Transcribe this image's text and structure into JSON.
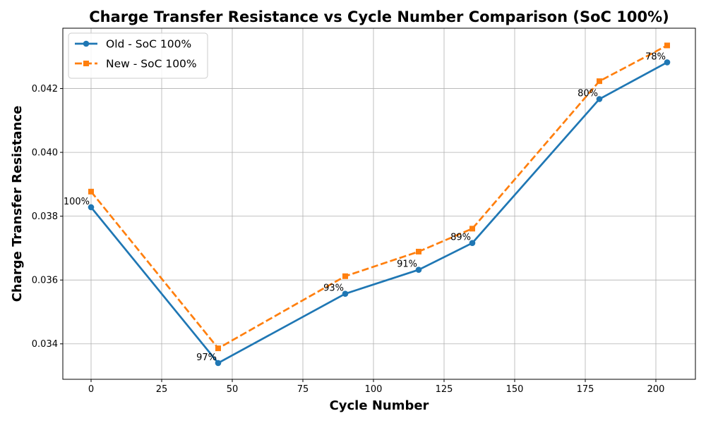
{
  "chart_data": {
    "type": "line",
    "title": "Charge Transfer Resistance vs Cycle Number Comparison (SoC 100%)",
    "xlabel": "Cycle Number",
    "ylabel": "Charge Transfer Resistance",
    "xlim": [
      -10,
      214
    ],
    "ylim": [
      0.03289,
      0.04389
    ],
    "xticks": [
      0,
      25,
      50,
      75,
      100,
      125,
      150,
      175,
      200
    ],
    "yticks": [
      0.034,
      0.036,
      0.038,
      0.04,
      0.042
    ],
    "grid": true,
    "legend_position": "upper-left",
    "x": [
      0,
      45,
      90,
      116,
      135,
      180,
      204
    ],
    "series": [
      {
        "name": "Old - SoC 100%",
        "color": "#1f77b4",
        "marker": "circle",
        "line_style": "solid",
        "values": [
          0.03828,
          0.0334,
          0.03557,
          0.03632,
          0.03716,
          0.04167,
          0.04282
        ]
      },
      {
        "name": "New - SoC 100%",
        "color": "#ff7f0e",
        "marker": "square",
        "line_style": "dashed",
        "values": [
          0.03877,
          0.03386,
          0.03612,
          0.03689,
          0.03761,
          0.04223,
          0.04335
        ]
      }
    ],
    "point_labels": [
      "100%",
      "97%",
      "93%",
      "91%",
      "89%",
      "80%",
      "78%"
    ]
  }
}
